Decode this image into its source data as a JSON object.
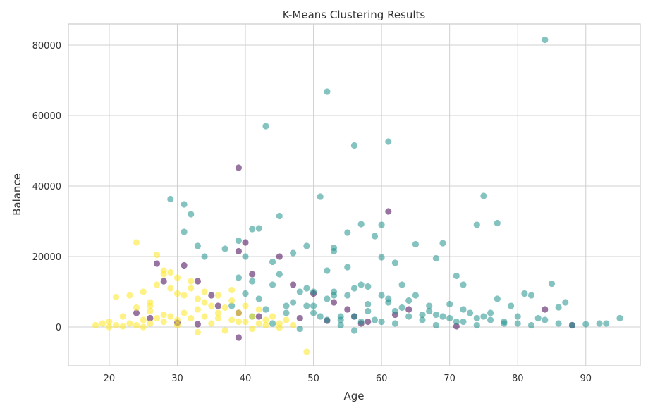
{
  "chart_data": {
    "type": "scatter",
    "title": "K-Means Clustering Results",
    "xlabel": "Age",
    "ylabel": "Balance",
    "xlim": [
      14,
      98
    ],
    "ylim": [
      -11000,
      86000
    ],
    "xticks": [
      20,
      30,
      40,
      50,
      60,
      70,
      80,
      90
    ],
    "yticks": [
      0,
      20000,
      40000,
      60000,
      80000
    ],
    "grid": true,
    "legend": "none",
    "point_opacity": 0.55,
    "colors": {
      "cluster_0": "#440154",
      "cluster_1": "#21918c",
      "cluster_2": "#fde725",
      "grid": "#d0d0d0",
      "frame": "#cccccc"
    },
    "series": [
      {
        "color": "#440154",
        "x": [
          24,
          27,
          28,
          31,
          33,
          35,
          39,
          39,
          40,
          41,
          45,
          47,
          50,
          53,
          55,
          56,
          58,
          61,
          64,
          71,
          84,
          88,
          26,
          30,
          33,
          36,
          39,
          42,
          48,
          52,
          57,
          39,
          62
        ],
        "y": [
          4000,
          18000,
          13000,
          17500,
          13000,
          9000,
          45200,
          21500,
          24000,
          15000,
          20000,
          12000,
          9500,
          7000,
          5000,
          3000,
          1500,
          32800,
          5000,
          200,
          5000,
          500,
          2500,
          1200,
          800,
          6000,
          4000,
          3000,
          2500,
          1800,
          1000,
          -3000,
          3500
        ]
      },
      {
        "color": "#21918c",
        "x": [
          84,
          52,
          43,
          61,
          56,
          39,
          29,
          32,
          31,
          31,
          33,
          34,
          37,
          41,
          42,
          44,
          45,
          49,
          51,
          53,
          53,
          55,
          57,
          59,
          60,
          60,
          62,
          65,
          68,
          69,
          71,
          74,
          75,
          77,
          85,
          86,
          87,
          92,
          93,
          95,
          40,
          42,
          44,
          46,
          48,
          50,
          52,
          54,
          56,
          58,
          60,
          62,
          64,
          66,
          68,
          70,
          72,
          74,
          76,
          78,
          80,
          82,
          84,
          86,
          88,
          90,
          43,
          47,
          51,
          55,
          59,
          63,
          67,
          71,
          75,
          79,
          83,
          38,
          39,
          41,
          45,
          49,
          53,
          57,
          61,
          65,
          69,
          73,
          77,
          81,
          41,
          44,
          48,
          52,
          56,
          60,
          64,
          68,
          72,
          76,
          80,
          46,
          50,
          54,
          58,
          62,
          66,
          70,
          74,
          78,
          82,
          52,
          55,
          58,
          40,
          47,
          53,
          63,
          67,
          72,
          50,
          56,
          61,
          49,
          54,
          57
        ],
        "y": [
          81500,
          66800,
          57000,
          52600,
          51500,
          24500,
          36300,
          32000,
          34800,
          27000,
          23000,
          20000,
          22200,
          27800,
          28000,
          18500,
          31500,
          23000,
          37000,
          22500,
          21500,
          26800,
          29200,
          25800,
          19800,
          29000,
          18200,
          23500,
          19500,
          23800,
          14500,
          29000,
          37200,
          29500,
          12300,
          5600,
          7000,
          1000,
          1000,
          2500,
          9500,
          8000,
          12000,
          6000,
          10000,
          4000,
          8000,
          3000,
          11000,
          6500,
          9000,
          4500,
          7500,
          2000,
          3500,
          6500,
          1500,
          2500,
          4000,
          1000,
          3000,
          500,
          2000,
          1000,
          500,
          800,
          5000,
          7000,
          3000,
          9000,
          2000,
          5500,
          4500,
          1500,
          3000,
          6000,
          2500,
          6000,
          14000,
          13000,
          15000,
          11000,
          10000,
          12000,
          7000,
          9000,
          3000,
          4000,
          8000,
          9500,
          3000,
          1000,
          -500,
          2000,
          -1000,
          1500,
          3000,
          500,
          5000,
          2000,
          1000,
          4000,
          6000,
          2000,
          4500,
          1000,
          3500,
          2500,
          500,
          1500,
          9000,
          16000,
          17000,
          11500,
          20000,
          21000,
          9000,
          12000,
          6000,
          12000,
          10000,
          3000,
          8000,
          6000,
          500,
          1500
        ]
      },
      {
        "color": "#fde725",
        "x": [
          24,
          49,
          27,
          21,
          18,
          19,
          20,
          22,
          23,
          25,
          26,
          28,
          29,
          30,
          32,
          34,
          36,
          38,
          40,
          42,
          44,
          46,
          47,
          21,
          23,
          25,
          27,
          29,
          31,
          33,
          35,
          37,
          39,
          41,
          43,
          45,
          22,
          24,
          26,
          28,
          30,
          32,
          34,
          36,
          38,
          40,
          42,
          20,
          25,
          30,
          35,
          27,
          29,
          33,
          26,
          31,
          28,
          30,
          32,
          34,
          36,
          38,
          41,
          43,
          45,
          24,
          26,
          28,
          37,
          39,
          33
        ],
        "y": [
          24000,
          -7000,
          20500,
          8500,
          500,
          1000,
          1500,
          3000,
          9000,
          10000,
          6000,
          15000,
          15500,
          14000,
          13000,
          10000,
          9000,
          10500,
          6000,
          5000,
          3000,
          2000,
          500,
          500,
          1000,
          2000,
          2500,
          3000,
          4000,
          5000,
          6000,
          5500,
          4000,
          3000,
          2000,
          1000,
          200,
          500,
          1000,
          1500,
          2000,
          2500,
          3000,
          2500,
          2000,
          1500,
          1000,
          0,
          0,
          500,
          1000,
          12000,
          11000,
          8000,
          7000,
          9000,
          16000,
          9500,
          11000,
          7000,
          4000,
          7500,
          -500,
          500,
          -200,
          5500,
          4500,
          3500,
          -1000,
          1500,
          -1500
        ]
      }
    ]
  }
}
